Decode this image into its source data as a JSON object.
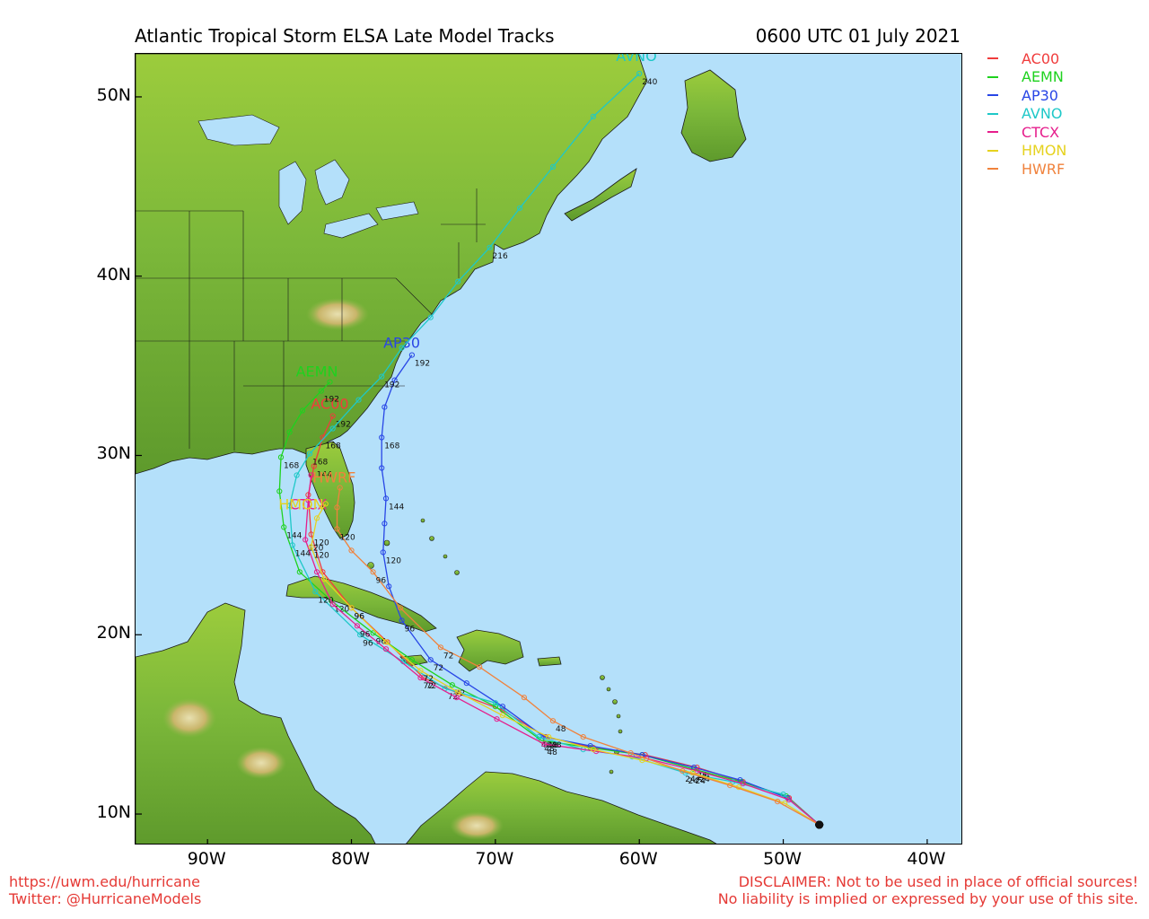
{
  "title": "Atlantic Tropical Storm ELSA Late Model Tracks",
  "timestamp": "0600 UTC 01 July 2021",
  "lat_axis": [
    {
      "label": "50N",
      "value": 50
    },
    {
      "label": "40N",
      "value": 40
    },
    {
      "label": "30N",
      "value": 30
    },
    {
      "label": "20N",
      "value": 20
    },
    {
      "label": "10N",
      "value": 10
    }
  ],
  "lon_axis": [
    {
      "label": "90W",
      "value": -90
    },
    {
      "label": "80W",
      "value": -80
    },
    {
      "label": "70W",
      "value": -70
    },
    {
      "label": "60W",
      "value": -60
    },
    {
      "label": "50W",
      "value": -50
    },
    {
      "label": "40W",
      "value": -40
    }
  ],
  "extent": {
    "lon_min": -95,
    "lon_max": -37.5,
    "lat_min": 8.25,
    "lat_max": 52.4
  },
  "models": [
    {
      "name": "AC00",
      "color": "#f03c3c",
      "track": [
        [
          -47.5,
          9.4
        ],
        [
          -49.6,
          10.9
        ],
        [
          -52.8,
          11.8
        ],
        [
          -56.0,
          12.6
        ],
        [
          -59.6,
          13.3
        ],
        [
          -63.2,
          13.7
        ],
        [
          -66.5,
          14.3
        ],
        [
          -69.5,
          15.8
        ],
        [
          -72.5,
          16.7
        ],
        [
          -75.0,
          17.6
        ],
        [
          -77.5,
          19.6
        ],
        [
          -80.0,
          21.5
        ],
        [
          -82.0,
          23.5
        ],
        [
          -82.8,
          25.6
        ],
        [
          -83.0,
          27.8
        ],
        [
          -82.6,
          29.4
        ],
        [
          -82.0,
          31.0
        ],
        [
          -81.3,
          32.2
        ]
      ],
      "hour_labels": [
        {
          "t": "24",
          "lon": -56.0,
          "lat": 12.6
        },
        {
          "t": "48",
          "lon": -66.5,
          "lat": 14.3
        },
        {
          "t": "72",
          "lon": -75.0,
          "lat": 17.6
        },
        {
          "t": "96",
          "lon": -80.0,
          "lat": 21.5
        },
        {
          "t": "120",
          "lon": -82.8,
          "lat": 25.6
        },
        {
          "t": "144",
          "lon": -82.6,
          "lat": 29.4
        },
        {
          "t": "168",
          "lon": -82.0,
          "lat": 31.0
        },
        {
          "t": "192",
          "lon": -81.3,
          "lat": 32.2
        }
      ],
      "end_label": {
        "t": "AC00",
        "lon": -81.5,
        "lat": 32.6
      }
    },
    {
      "name": "AEMN",
      "color": "#1ed21e",
      "track": [
        [
          -47.5,
          9.4
        ],
        [
          -49.8,
          11.0
        ],
        [
          -52.9,
          11.8
        ],
        [
          -56.2,
          12.5
        ],
        [
          -59.8,
          13.3
        ],
        [
          -63.4,
          13.7
        ],
        [
          -66.8,
          14.1
        ],
        [
          -70.0,
          16.0
        ],
        [
          -73.0,
          17.2
        ],
        [
          -75.8,
          18.6
        ],
        [
          -78.5,
          20.1
        ],
        [
          -81.4,
          21.9
        ],
        [
          -83.6,
          23.5
        ],
        [
          -84.7,
          26.0
        ],
        [
          -85.0,
          28.0
        ],
        [
          -84.9,
          29.9
        ],
        [
          -84.3,
          31.3
        ],
        [
          -83.4,
          32.5
        ],
        [
          -82.1,
          33.6
        ],
        [
          -81.5,
          34.1
        ]
      ],
      "hour_labels": [
        {
          "t": "24",
          "lon": -56.2,
          "lat": 12.5
        },
        {
          "t": "48",
          "lon": -66.8,
          "lat": 14.1
        },
        {
          "t": "72",
          "lon": -73.0,
          "lat": 17.2
        },
        {
          "t": "96",
          "lon": -78.5,
          "lat": 20.1
        },
        {
          "t": "120",
          "lon": -81.4,
          "lat": 21.9
        },
        {
          "t": "144",
          "lon": -84.7,
          "lat": 26.0
        },
        {
          "t": "168",
          "lon": -84.9,
          "lat": 29.9
        },
        {
          "t": "192",
          "lon": -82.1,
          "lat": 33.6
        }
      ],
      "end_label": {
        "t": "AEMN",
        "lon": -82.4,
        "lat": 34.4
      }
    },
    {
      "name": "AP30",
      "color": "#2846e6",
      "track": [
        [
          -47.5,
          9.4
        ],
        [
          -49.7,
          10.9
        ],
        [
          -53.0,
          11.9
        ],
        [
          -56.2,
          12.6
        ],
        [
          -59.8,
          13.3
        ],
        [
          -63.4,
          13.8
        ],
        [
          -66.6,
          14.3
        ],
        [
          -69.5,
          16.0
        ],
        [
          -72.0,
          17.3
        ],
        [
          -74.5,
          18.6
        ],
        [
          -76.5,
          20.8
        ],
        [
          -77.4,
          22.7
        ],
        [
          -77.8,
          24.6
        ],
        [
          -77.7,
          26.2
        ],
        [
          -77.6,
          27.6
        ],
        [
          -77.9,
          29.3
        ],
        [
          -77.9,
          31.0
        ],
        [
          -77.7,
          32.7
        ],
        [
          -77.0,
          34.2
        ],
        [
          -75.8,
          35.6
        ]
      ],
      "hour_labels": [
        {
          "t": "24",
          "lon": -56.2,
          "lat": 12.6
        },
        {
          "t": "48",
          "lon": -66.6,
          "lat": 14.3
        },
        {
          "t": "72",
          "lon": -74.5,
          "lat": 18.6
        },
        {
          "t": "96",
          "lon": -76.5,
          "lat": 20.8
        },
        {
          "t": "120",
          "lon": -77.8,
          "lat": 24.6
        },
        {
          "t": "144",
          "lon": -77.6,
          "lat": 27.6
        },
        {
          "t": "168",
          "lon": -77.9,
          "lat": 31.0
        },
        {
          "t": "192",
          "lon": -75.8,
          "lat": 35.6
        }
      ],
      "end_label": {
        "t": "AP30",
        "lon": -76.5,
        "lat": 36.0
      }
    },
    {
      "name": "AVNO",
      "color": "#1ec8c8",
      "track": [
        [
          -47.5,
          9.4
        ],
        [
          -50.0,
          11.1
        ],
        [
          -53.5,
          11.8
        ],
        [
          -56.8,
          12.3
        ],
        [
          -60.5,
          13.2
        ],
        [
          -63.9,
          13.6
        ],
        [
          -67.0,
          14.3
        ],
        [
          -70.0,
          16.2
        ],
        [
          -73.5,
          17.0
        ],
        [
          -76.4,
          18.5
        ],
        [
          -79.4,
          20.0
        ],
        [
          -82.5,
          22.4
        ],
        [
          -84.1,
          25.0
        ],
        [
          -84.3,
          27.2
        ],
        [
          -83.8,
          28.9
        ],
        [
          -82.9,
          30.1
        ],
        [
          -81.3,
          31.5
        ],
        [
          -79.5,
          33.1
        ],
        [
          -77.9,
          34.4
        ],
        [
          -76.5,
          36.0
        ],
        [
          -74.5,
          37.7
        ],
        [
          -72.6,
          39.7
        ],
        [
          -70.4,
          41.6
        ],
        [
          -68.3,
          43.8
        ],
        [
          -66.0,
          46.1
        ],
        [
          -63.2,
          48.9
        ],
        [
          -60.0,
          51.3
        ]
      ],
      "hour_labels": [
        {
          "t": "24",
          "lon": -56.8,
          "lat": 12.3
        },
        {
          "t": "48",
          "lon": -67.0,
          "lat": 14.3
        },
        {
          "t": "72",
          "lon": -73.5,
          "lat": 17.0
        },
        {
          "t": "96",
          "lon": -79.4,
          "lat": 20.0
        },
        {
          "t": "120",
          "lon": -82.5,
          "lat": 22.4
        },
        {
          "t": "144",
          "lon": -84.1,
          "lat": 25.0
        },
        {
          "t": "168",
          "lon": -82.9,
          "lat": 30.1
        },
        {
          "t": "192",
          "lon": -77.9,
          "lat": 34.4
        },
        {
          "t": "216",
          "lon": -70.4,
          "lat": 41.6
        },
        {
          "t": "240",
          "lon": -60.0,
          "lat": 51.3
        }
      ],
      "end_label": {
        "t": "AVNO",
        "lon": -60.2,
        "lat": 52.0
      }
    },
    {
      "name": "CTCX",
      "color": "#e61e8c",
      "track": [
        [
          -47.5,
          9.4
        ],
        [
          -49.6,
          10.8
        ],
        [
          -52.8,
          11.7
        ],
        [
          -56.0,
          12.4
        ],
        [
          -59.5,
          13.1
        ],
        [
          -63.0,
          13.5
        ],
        [
          -66.6,
          13.9
        ],
        [
          -69.9,
          15.3
        ],
        [
          -72.7,
          16.5
        ],
        [
          -75.2,
          17.6
        ],
        [
          -77.6,
          19.2
        ],
        [
          -79.6,
          20.5
        ],
        [
          -81.3,
          21.7
        ],
        [
          -82.4,
          23.5
        ],
        [
          -83.2,
          25.3
        ],
        [
          -83.0,
          27.5
        ],
        [
          -82.8,
          28.9
        ]
      ],
      "hour_labels": [
        {
          "t": "24",
          "lon": -56.0,
          "lat": 12.4
        },
        {
          "t": "48",
          "lon": -66.6,
          "lat": 13.9
        },
        {
          "t": "72",
          "lon": -75.2,
          "lat": 17.6
        },
        {
          "t": "96",
          "lon": -79.6,
          "lat": 20.5
        },
        {
          "t": "120",
          "lon": -83.2,
          "lat": 25.3
        }
      ],
      "end_label": {
        "t": "CTCX",
        "lon": -83.0,
        "lat": 27.0
      }
    },
    {
      "name": "HMON",
      "color": "#e6d21e",
      "track": [
        [
          -47.5,
          9.4
        ],
        [
          -49.9,
          10.6
        ],
        [
          -53.1,
          11.5
        ],
        [
          -56.3,
          12.3
        ],
        [
          -59.8,
          13.0
        ],
        [
          -63.2,
          13.6
        ],
        [
          -66.3,
          14.3
        ],
        [
          -69.5,
          15.5
        ],
        [
          -72.6,
          16.8
        ],
        [
          -75.2,
          18.0
        ],
        [
          -77.6,
          19.6
        ],
        [
          -80.0,
          21.5
        ],
        [
          -81.9,
          23.1
        ],
        [
          -82.8,
          24.9
        ],
        [
          -82.4,
          26.5
        ],
        [
          -81.8,
          27.3
        ]
      ],
      "hour_labels": [
        {
          "t": "24",
          "lon": -56.3,
          "lat": 12.3
        },
        {
          "t": "48",
          "lon": -66.3,
          "lat": 14.3
        },
        {
          "t": "72",
          "lon": -75.2,
          "lat": 18.0
        },
        {
          "t": "96",
          "lon": -80.0,
          "lat": 21.5
        },
        {
          "t": "120",
          "lon": -82.8,
          "lat": 24.9
        }
      ],
      "end_label": {
        "t": "HMON",
        "lon": -83.5,
        "lat": 27.0
      }
    },
    {
      "name": "HWRF",
      "color": "#f0823c",
      "track": [
        [
          -47.5,
          9.4
        ],
        [
          -50.4,
          10.7
        ],
        [
          -53.7,
          11.6
        ],
        [
          -57.0,
          12.4
        ],
        [
          -60.6,
          13.4
        ],
        [
          -63.9,
          14.3
        ],
        [
          -66.0,
          15.2
        ],
        [
          -68.0,
          16.5
        ],
        [
          -71.1,
          18.2
        ],
        [
          -73.8,
          19.3
        ],
        [
          -76.6,
          21.5
        ],
        [
          -78.5,
          23.5
        ],
        [
          -80.0,
          24.7
        ],
        [
          -81.0,
          25.9
        ],
        [
          -81.0,
          27.1
        ],
        [
          -80.8,
          28.2
        ]
      ],
      "hour_labels": [
        {
          "t": "24",
          "lon": -57.0,
          "lat": 12.4
        },
        {
          "t": "48",
          "lon": -66.0,
          "lat": 15.2
        },
        {
          "t": "72",
          "lon": -73.8,
          "lat": 19.3
        },
        {
          "t": "96",
          "lon": -78.5,
          "lat": 23.5
        },
        {
          "t": "120",
          "lon": -81.0,
          "lat": 25.9
        }
      ],
      "end_label": {
        "t": "HWRF",
        "lon": -81.2,
        "lat": 28.5
      }
    }
  ],
  "footer": {
    "url": "https://uwm.edu/hurricane",
    "twitter": "Twitter: @HurricaneModels",
    "disclaimer_1": "DISCLAIMER: Not to be used in place of official sources!",
    "disclaimer_2": "No liability is implied or expressed by your use of this site."
  }
}
